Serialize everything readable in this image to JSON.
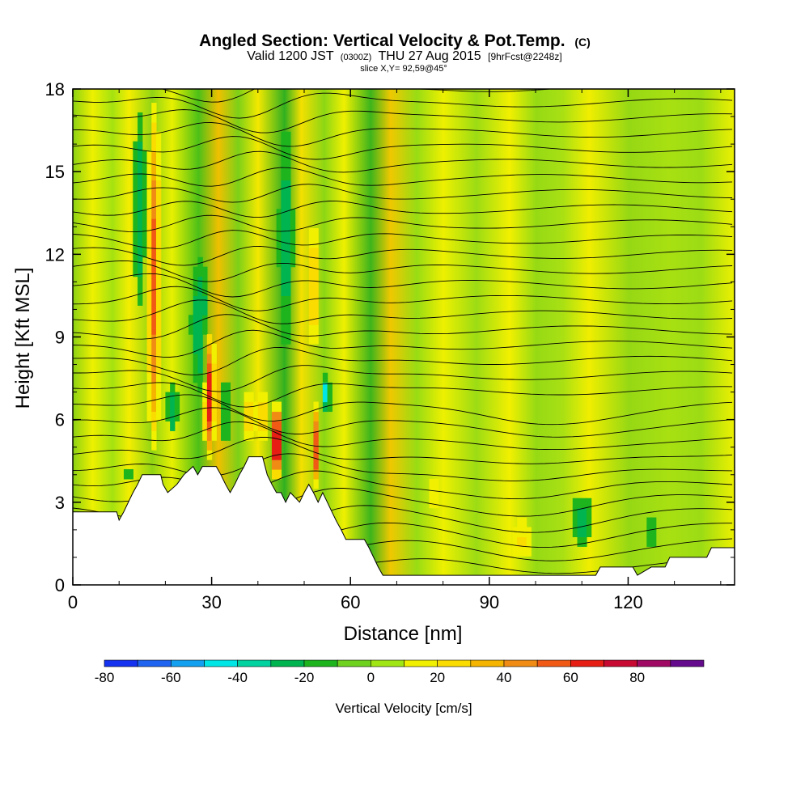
{
  "chart_data": {
    "type": "heatmap",
    "title": {
      "main": "Angled Section: Vertical Velocity & Pot.Temp.",
      "unit": "(C)",
      "valid_prefix": "Valid 1200 JST",
      "valid_z": "(0300Z)",
      "valid_date": "THU 27 Aug 2015",
      "forecast": "[9hrFcst@2248z]",
      "slice": "slice X,Y= 92,59@45°"
    },
    "xlabel": "Distance [nm]",
    "ylabel": "Height [Kft MSL]",
    "xlim": [
      0,
      143
    ],
    "ylim": [
      0,
      18
    ],
    "x_ticks": [
      0,
      30,
      60,
      90,
      120
    ],
    "y_ticks": [
      0,
      3,
      6,
      9,
      12,
      15,
      18
    ],
    "colorbar": {
      "label": "Vertical Velocity [cm/s]",
      "ticks": [
        -80,
        -60,
        -40,
        -20,
        0,
        20,
        40,
        60,
        80
      ],
      "bins": [
        {
          "from": -80,
          "to": -70,
          "color": "#1432f0"
        },
        {
          "from": -70,
          "to": -60,
          "color": "#1e64f0"
        },
        {
          "from": -60,
          "to": -50,
          "color": "#14a0f0"
        },
        {
          "from": -50,
          "to": -40,
          "color": "#00e6e6"
        },
        {
          "from": -40,
          "to": -30,
          "color": "#00d2a0"
        },
        {
          "from": -30,
          "to": -20,
          "color": "#00b450"
        },
        {
          "from": -20,
          "to": -10,
          "color": "#1eb41e"
        },
        {
          "from": -10,
          "to": 0,
          "color": "#6ed21e"
        },
        {
          "from": 0,
          "to": 10,
          "color": "#a0e614"
        },
        {
          "from": 10,
          "to": 20,
          "color": "#f0f000"
        },
        {
          "from": 20,
          "to": 30,
          "color": "#fadc00"
        },
        {
          "from": 30,
          "to": 40,
          "color": "#f5b400"
        },
        {
          "from": 40,
          "to": 50,
          "color": "#f08c14"
        },
        {
          "from": 50,
          "to": 60,
          "color": "#f05a14"
        },
        {
          "from": 60,
          "to": 70,
          "color": "#e61e14"
        },
        {
          "from": 70,
          "to": 80,
          "color": "#c80a32"
        },
        {
          "from": 80,
          "to": 90,
          "color": "#a00a64"
        },
        {
          "from": 90,
          "to": 100,
          "color": "#640a8c"
        }
      ]
    },
    "terrain": [
      {
        "x": 0,
        "y": 2.65
      },
      {
        "x": 9.5,
        "y": 2.65
      },
      {
        "x": 10,
        "y": 2.35
      },
      {
        "x": 11,
        "y": 2.65
      },
      {
        "x": 12,
        "y": 3.0
      },
      {
        "x": 13,
        "y": 3.35
      },
      {
        "x": 14,
        "y": 3.65
      },
      {
        "x": 15,
        "y": 4.0
      },
      {
        "x": 19,
        "y": 4.0
      },
      {
        "x": 19.5,
        "y": 3.65
      },
      {
        "x": 20.5,
        "y": 3.35
      },
      {
        "x": 22.5,
        "y": 3.65
      },
      {
        "x": 24,
        "y": 4.0
      },
      {
        "x": 26,
        "y": 4.3
      },
      {
        "x": 27,
        "y": 4.0
      },
      {
        "x": 28,
        "y": 4.3
      },
      {
        "x": 31,
        "y": 4.3
      },
      {
        "x": 32,
        "y": 4.0
      },
      {
        "x": 33,
        "y": 3.65
      },
      {
        "x": 34,
        "y": 3.35
      },
      {
        "x": 35,
        "y": 3.65
      },
      {
        "x": 36,
        "y": 4.0
      },
      {
        "x": 37,
        "y": 4.3
      },
      {
        "x": 38,
        "y": 4.65
      },
      {
        "x": 41,
        "y": 4.65
      },
      {
        "x": 42,
        "y": 4.0
      },
      {
        "x": 43,
        "y": 3.65
      },
      {
        "x": 44,
        "y": 3.35
      },
      {
        "x": 45,
        "y": 3.35
      },
      {
        "x": 46,
        "y": 3.0
      },
      {
        "x": 47,
        "y": 3.35
      },
      {
        "x": 49,
        "y": 3.0
      },
      {
        "x": 50,
        "y": 3.35
      },
      {
        "x": 51,
        "y": 3.65
      },
      {
        "x": 52,
        "y": 3.35
      },
      {
        "x": 53,
        "y": 3.0
      },
      {
        "x": 54,
        "y": 3.35
      },
      {
        "x": 55,
        "y": 3.0
      },
      {
        "x": 56,
        "y": 2.65
      },
      {
        "x": 57,
        "y": 2.3
      },
      {
        "x": 58,
        "y": 2.0
      },
      {
        "x": 59,
        "y": 1.65
      },
      {
        "x": 63,
        "y": 1.65
      },
      {
        "x": 64,
        "y": 1.35
      },
      {
        "x": 65,
        "y": 1.0
      },
      {
        "x": 66,
        "y": 0.65
      },
      {
        "x": 67,
        "y": 0.35
      },
      {
        "x": 113,
        "y": 0.35
      },
      {
        "x": 114,
        "y": 0.65
      },
      {
        "x": 121,
        "y": 0.65
      },
      {
        "x": 122,
        "y": 0.35
      },
      {
        "x": 125,
        "y": 0.65
      },
      {
        "x": 128,
        "y": 0.65
      },
      {
        "x": 129,
        "y": 1.0
      },
      {
        "x": 137,
        "y": 1.0
      },
      {
        "x": 138,
        "y": 1.35
      },
      {
        "x": 143,
        "y": 1.35
      }
    ]
  }
}
